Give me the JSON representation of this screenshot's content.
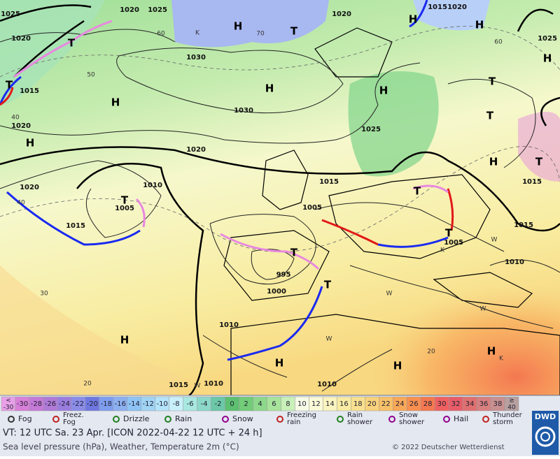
{
  "map": {
    "pressure_labels": [
      "1025",
      "1020",
      "1025",
      "1020",
      "1015",
      "1020",
      "1025",
      "1020",
      "1030",
      "1015",
      "1030",
      "1025",
      "1020",
      "1020",
      "1015",
      "1020",
      "1010",
      "1005",
      "1015",
      "1005",
      "1015",
      "1005",
      "1010",
      "995",
      "1000",
      "1010",
      "1015",
      "1010",
      "1010",
      "1015"
    ],
    "temperature_labels": [
      "60",
      "70",
      "50",
      "40",
      "40",
      "30",
      "20",
      "20",
      "60"
    ],
    "highs": [
      "H",
      "H",
      "H",
      "H",
      "H",
      "H",
      "H",
      "H",
      "H",
      "H",
      "H",
      "H",
      "H"
    ],
    "lows": [
      "T",
      "T",
      "T",
      "T",
      "T",
      "T",
      "T",
      "T",
      "T",
      "T",
      "T"
    ],
    "cold_marks": [
      "K",
      "K",
      "K"
    ],
    "warm_marks": [
      "W",
      "W",
      "W",
      "W",
      "W"
    ]
  },
  "legend": {
    "scale_low": [
      "<",
      "-30"
    ],
    "scale_values": [
      -30,
      -28,
      -26,
      -24,
      -22,
      -20,
      -18,
      -16,
      -14,
      -12,
      -10,
      -8,
      -6,
      -4,
      -2,
      0,
      2,
      4,
      6,
      8,
      10,
      12,
      14,
      16,
      18,
      20,
      22,
      24,
      26,
      28,
      30,
      32,
      34,
      36,
      38
    ],
    "scale_colors": [
      "#d880d8",
      "#c57ad8",
      "#b07ad8",
      "#9b7de0",
      "#8a8ce8",
      "#6e78e0",
      "#7f9ef0",
      "#8cb0f0",
      "#8ec4f5",
      "#a0d4f5",
      "#b4e4fa",
      "#c8f0fa",
      "#a8e8e0",
      "#8cd8c8",
      "#6cc8a8",
      "#5cc070",
      "#72cc78",
      "#8ed88c",
      "#a8e49c",
      "#c8f0b8",
      "#f6fbe6",
      "#fafad8",
      "#faf4c0",
      "#f8eca4",
      "#f8e090",
      "#f8d27c",
      "#f8c068",
      "#f8a858",
      "#f89050",
      "#f47850",
      "#f06060",
      "#e85c68",
      "#e07070",
      "#d88080",
      "#c89090"
    ],
    "scale_low_color": "#e8a0e8",
    "scale_high": [
      "≥",
      "40"
    ],
    "scale_high_color": "#b8a0a0",
    "items": [
      [
        "Fog"
      ],
      [
        "Freez.",
        "Fog"
      ],
      [
        "Drizzle"
      ],
      [
        "Rain"
      ],
      [
        "Snow"
      ],
      [
        "Freezing",
        "rain"
      ],
      [
        "Rain",
        "shower"
      ],
      [
        "Snow",
        "shower"
      ],
      [
        "Hail"
      ],
      [
        "Thunder",
        "storm"
      ]
    ]
  },
  "footer": {
    "valid_time": "VT: 12 UTC Sa.  23 Apr. [ICON 2022-04-22  12 UTC + 24 h]",
    "subtitle": "Sea level pressure (hPa), Weather, Temperature 2m (°C)",
    "copyright": "© 2022 Deutscher Wetterdienst",
    "logo": "DWD"
  }
}
